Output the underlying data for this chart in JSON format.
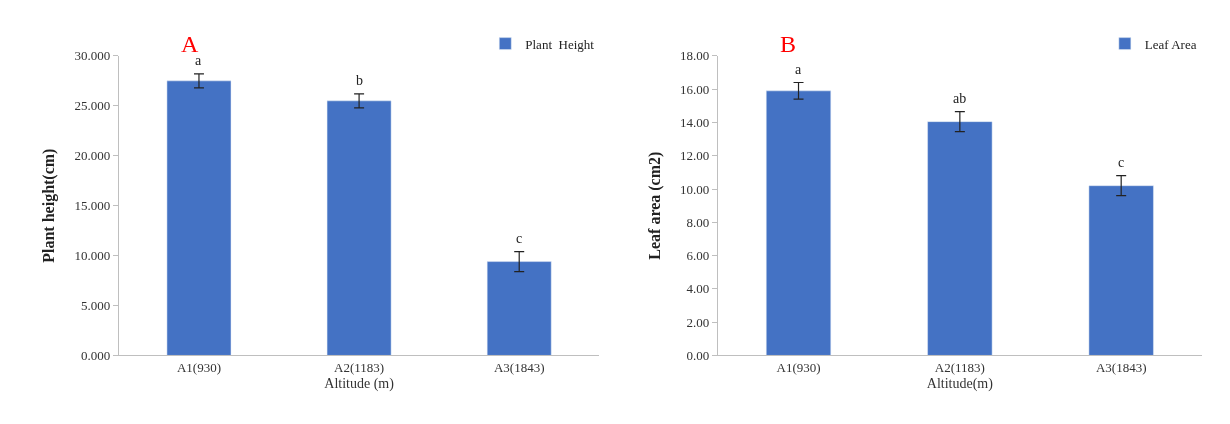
{
  "chart_data": [
    {
      "type": "bar",
      "xlabel": "Altitude (m)",
      "ylabel": "Plant height(cm)",
      "categories": [
        "A1(930)",
        "A2(1183)",
        "A3(1843)"
      ],
      "series": [
        {
          "name": "Plant  Height",
          "color": "#4472c4",
          "values": [
            27.5,
            25.5,
            9.4
          ],
          "errors": [
            0.7,
            0.7,
            1.0
          ]
        }
      ],
      "ylim": [
        0,
        30
      ],
      "yticks": [
        {
          "value": 0,
          "label": "0.000"
        },
        {
          "value": 5,
          "label": "5.000"
        },
        {
          "value": 10,
          "label": "10.000"
        },
        {
          "value": 15,
          "label": "15.000"
        },
        {
          "value": 20,
          "label": "20.000"
        },
        {
          "value": 25,
          "label": "25.000"
        },
        {
          "value": 30,
          "label": "30.000"
        }
      ],
      "legend": "top right",
      "annotations": [
        "A",
        {
          "text": "a",
          "x": "A1(930)",
          "y": 28.2
        },
        {
          "text": "b",
          "x": "A2(1183)",
          "y": 26.2
        },
        {
          "text": "c",
          "x": "A3(1843)",
          "y": 10.4
        }
      ]
    },
    {
      "type": "bar",
      "xlabel": "Altitude(m)",
      "ylabel": "Leaf area (cm2)",
      "categories": [
        "A1(930)",
        "A2(1183)",
        "A3(1843)"
      ],
      "series": [
        {
          "name": "Leaf Area",
          "color": "#4472c4",
          "values": [
            15.9,
            14.05,
            10.2
          ],
          "errors": [
            0.5,
            0.6,
            0.6
          ]
        }
      ],
      "ylim": [
        0,
        18
      ],
      "yticks": [
        {
          "value": 0,
          "label": "0.00"
        },
        {
          "value": 2,
          "label": "2.00"
        },
        {
          "value": 4,
          "label": "4.00"
        },
        {
          "value": 6,
          "label": "6.00"
        },
        {
          "value": 8,
          "label": "8.00"
        },
        {
          "value": 10,
          "label": "10.00"
        },
        {
          "value": 12,
          "label": "12.00"
        },
        {
          "value": 14,
          "label": "14.00"
        },
        {
          "value": 16,
          "label": "16.00"
        },
        {
          "value": 18,
          "label": "18.00"
        }
      ],
      "legend": "top right",
      "annotations": [
        "B",
        {
          "text": "a",
          "x": "A1(930)",
          "y": 16.4
        },
        {
          "text": "ab",
          "x": "A2(1183)",
          "y": 14.65
        },
        {
          "text": "c",
          "x": "A3(1843)",
          "y": 10.8
        }
      ]
    }
  ]
}
